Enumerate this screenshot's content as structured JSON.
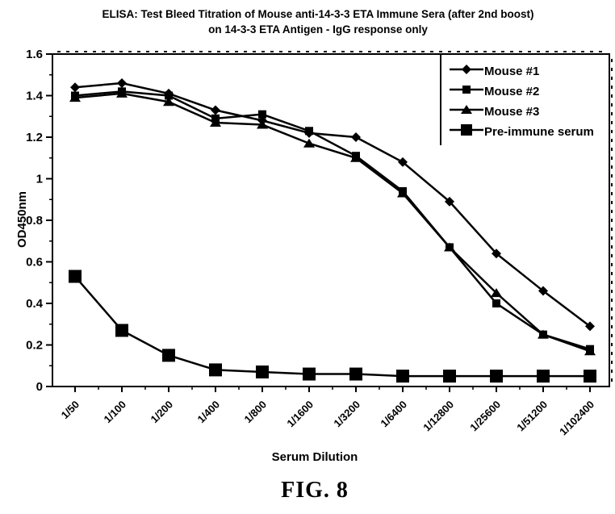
{
  "figure": {
    "caption": "FIG. 8"
  },
  "chart_data": {
    "type": "line",
    "title_line1": "ELISA: Test Bleed Titration of Mouse anti-14-3-3 ETA Immune Sera (after 2nd boost)",
    "title_line2": "on 14-3-3 ETA Antigen - IgG response only",
    "xlabel": "Serum Dilution",
    "ylabel": "OD450nm",
    "ylim": [
      0,
      1.6
    ],
    "yticks": [
      0,
      0.2,
      0.4,
      0.6,
      0.8,
      1,
      1.2,
      1.4,
      1.6
    ],
    "ytick_labels": [
      "0",
      "0.2",
      "0.4",
      "0.6",
      "0.8",
      "1",
      "1.2",
      "1.4",
      "1.6"
    ],
    "categories": [
      "1/50",
      "1/100",
      "1/200",
      "1/400",
      "1/800",
      "1/1600",
      "1/3200",
      "1/6400",
      "1/12800",
      "1/25600",
      "1/51200",
      "1/102400"
    ],
    "grid": false,
    "legend_position": "top-right-inside",
    "line_color": "#000000",
    "background_color": "#ffffff",
    "series": [
      {
        "name": "Mouse #1",
        "marker": "diamond",
        "values": [
          1.44,
          1.46,
          1.41,
          1.33,
          1.28,
          1.22,
          1.2,
          1.08,
          0.89,
          0.64,
          0.46,
          0.29
        ]
      },
      {
        "name": "Mouse #2",
        "marker": "square-small",
        "values": [
          1.4,
          1.42,
          1.4,
          1.29,
          1.31,
          1.23,
          1.11,
          0.94,
          0.67,
          0.4,
          0.25,
          0.18
        ]
      },
      {
        "name": "Mouse #3",
        "marker": "triangle",
        "values": [
          1.39,
          1.41,
          1.37,
          1.27,
          1.26,
          1.17,
          1.1,
          0.93,
          0.67,
          0.45,
          0.25,
          0.17
        ]
      },
      {
        "name": "Pre-immune serum",
        "marker": "square-large",
        "values": [
          0.53,
          0.27,
          0.15,
          0.08,
          0.07,
          0.06,
          0.06,
          0.05,
          0.05,
          0.05,
          0.05,
          0.05
        ]
      }
    ]
  }
}
